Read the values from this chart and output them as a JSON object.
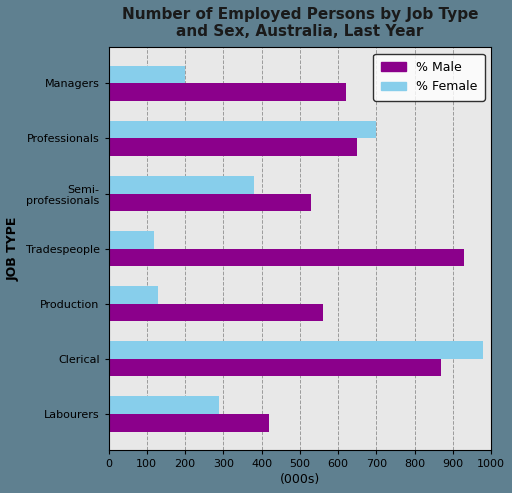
{
  "title": "Number of Employed Persons by Job Type\nand Sex, Australia, Last Year",
  "categories": [
    "Managers",
    "Professionals",
    "Semi-\nprofessionals",
    "Tradespeople",
    "Production",
    "Clerical",
    "Labourers"
  ],
  "male_values": [
    620,
    650,
    530,
    930,
    560,
    870,
    420
  ],
  "female_values": [
    200,
    700,
    380,
    120,
    130,
    980,
    290
  ],
  "male_color": "#8B008B",
  "female_color": "#87CEEB",
  "male_label": "% Male",
  "female_label": "% Female",
  "xlabel": "(000s)",
  "ylabel": "JOB TYPE",
  "xlim": [
    0,
    1000
  ],
  "xticks": [
    0,
    100,
    200,
    300,
    400,
    500,
    600,
    700,
    800,
    900,
    1000
  ],
  "figure_bg_color": "#5f8090",
  "plot_bg_color": "#e8e8e8",
  "bar_height": 0.32,
  "title_fontsize": 11,
  "axis_label_fontsize": 9,
  "tick_fontsize": 8,
  "legend_fontsize": 9,
  "title_color": "#1a1a1a"
}
